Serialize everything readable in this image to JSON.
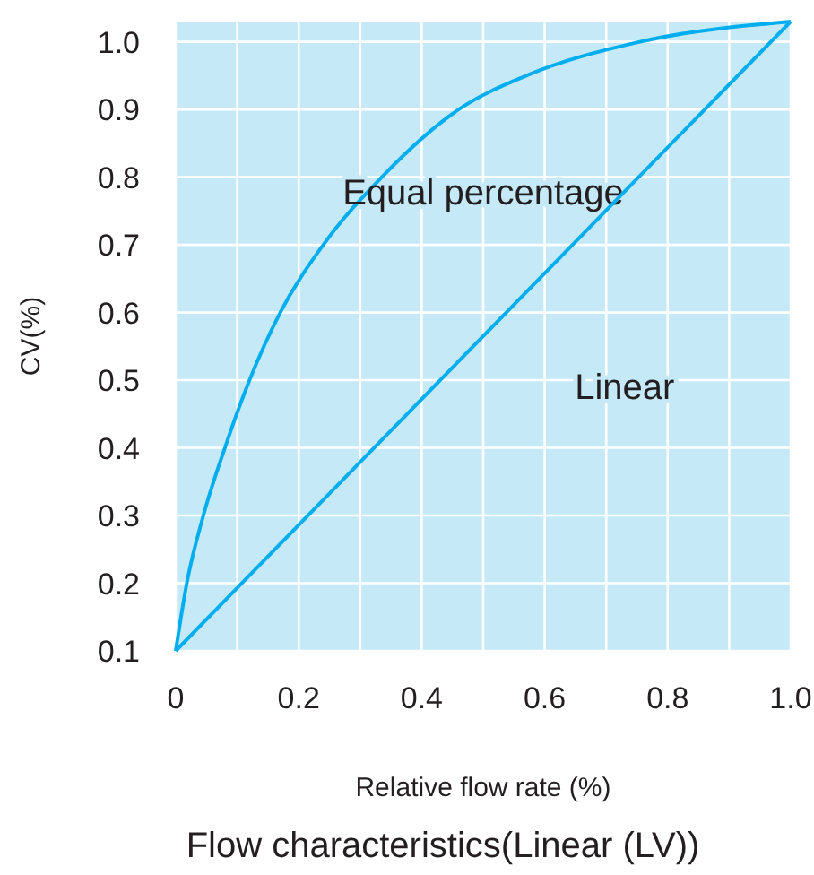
{
  "chart_data": {
    "type": "line",
    "title": "Flow characteristics(Linear (LV))",
    "xlabel": "Relative flow rate (%)",
    "ylabel": "CV(%)",
    "xlim": [
      0,
      1.0
    ],
    "ylim": [
      0.1,
      1.03
    ],
    "xticks": [
      {
        "value": 0,
        "label": "0"
      },
      {
        "value": 0.2,
        "label": "0.2"
      },
      {
        "value": 0.4,
        "label": "0.4"
      },
      {
        "value": 0.6,
        "label": "0.6"
      },
      {
        "value": 0.8,
        "label": "0.8"
      },
      {
        "value": 1.0,
        "label": "1.0"
      }
    ],
    "yticks": [
      0.1,
      0.2,
      0.3,
      0.4,
      0.5,
      0.6,
      0.7,
      0.8,
      0.9,
      {
        "value": 1.0,
        "label": "1.0"
      }
    ],
    "grid": true,
    "marker": "none",
    "series": [
      {
        "name": "Equal percentage",
        "color": "#00aeef",
        "x": [
          0,
          0.018,
          0.045,
          0.08,
          0.12,
          0.17,
          0.24,
          0.335,
          0.46,
          0.57,
          0.755,
          1.0
        ],
        "values": [
          0.1,
          0.2,
          0.3,
          0.4,
          0.5,
          0.6,
          0.7,
          0.8,
          0.9,
          0.95,
          1.0,
          1.03
        ]
      },
      {
        "name": "Linear",
        "color": "#00aeef",
        "x": [
          0,
          1.0
        ],
        "values": [
          0.1,
          1.03
        ]
      }
    ]
  }
}
